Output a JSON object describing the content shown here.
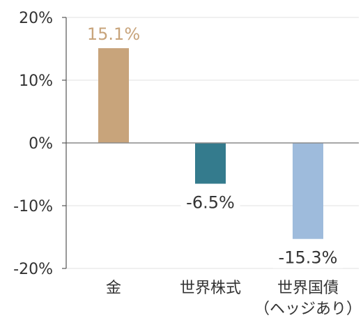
{
  "chart_data": {
    "type": "bar",
    "categories": [
      [
        "金"
      ],
      [
        "世界株式"
      ],
      [
        "世界国債",
        "（ヘッジあり）"
      ]
    ],
    "values": [
      15.1,
      -6.5,
      -15.3
    ],
    "value_labels": [
      "15.1%",
      "-6.5%",
      "-15.3%"
    ],
    "bar_colors": [
      "#c8a47b",
      "#347b8d",
      "#9ebbdc"
    ],
    "label_colors": [
      "#c8a47b",
      "#333333",
      "#333333"
    ],
    "ylim": [
      -20,
      20
    ],
    "yticks": [
      20,
      10,
      0,
      -10,
      -20
    ],
    "ytick_labels": [
      "20%",
      "10%",
      "0%",
      "-10%",
      "-20%"
    ],
    "grid": true,
    "title": "",
    "xlabel": "",
    "ylabel": ""
  }
}
